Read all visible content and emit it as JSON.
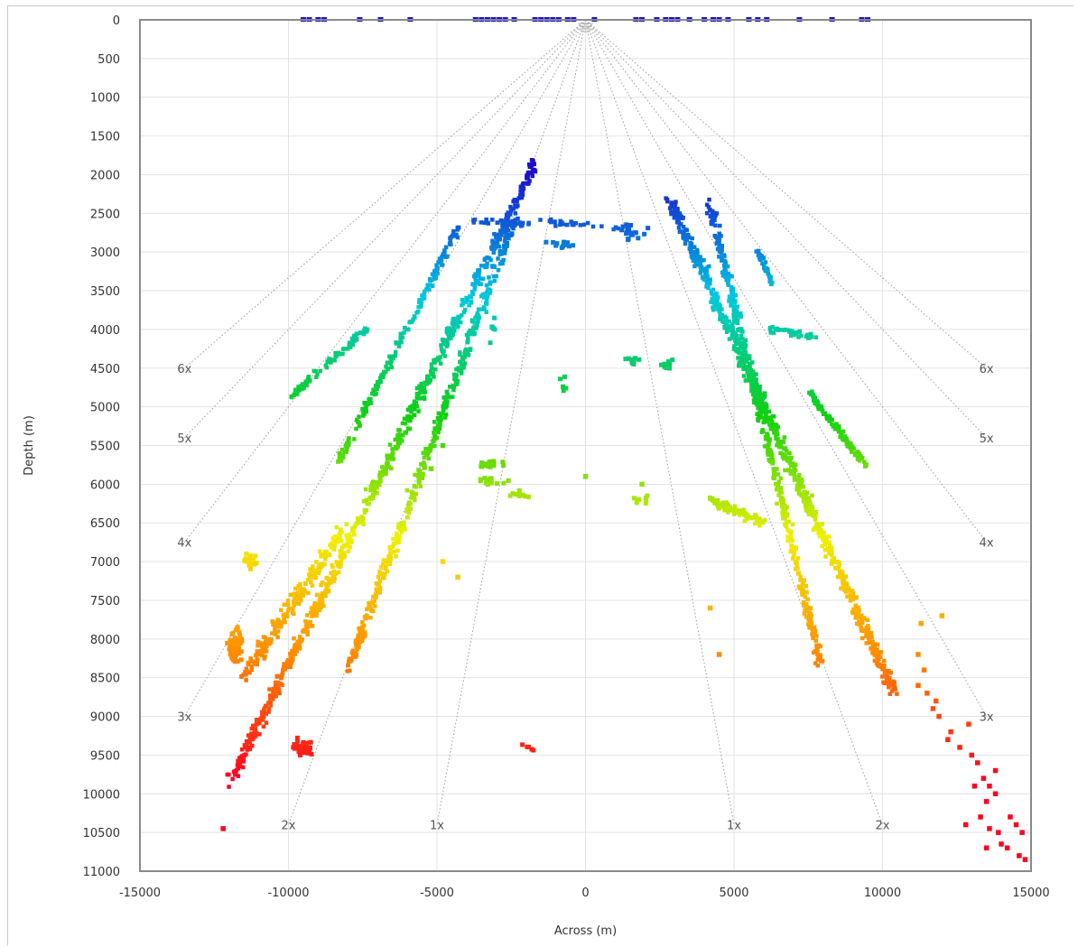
{
  "chart_data": {
    "type": "scatter",
    "title": "",
    "xlabel": "Across (m)",
    "ylabel": "Depth (m)",
    "xlim": [
      -15000,
      15000
    ],
    "ylim": [
      0,
      11000
    ],
    "y_inverted": true,
    "grid": true,
    "x_ticks": [
      -15000,
      -10000,
      -5000,
      0,
      5000,
      10000,
      15000
    ],
    "y_ticks": [
      0,
      500,
      1000,
      1500,
      2000,
      2500,
      3000,
      3500,
      4000,
      4500,
      5000,
      5500,
      6000,
      6500,
      7000,
      7500,
      8000,
      8500,
      9000,
      9500,
      10000,
      10500,
      11000
    ],
    "color_scale": [
      "#1a10d0",
      "#00c8e0",
      "#10d010",
      "#f0f000",
      "#ff8800",
      "#ff0020"
    ],
    "color_by": "depth",
    "coverage_lines": [
      {
        "label": "1x",
        "end": [
          -5000,
          10400
        ],
        "label_at": [
          -5000,
          10400
        ]
      },
      {
        "label": "1x",
        "end": [
          5000,
          10400
        ],
        "label_at": [
          5000,
          10400
        ]
      },
      {
        "label": "2x",
        "end": [
          -10000,
          10400
        ],
        "label_at": [
          -10000,
          10400
        ]
      },
      {
        "label": "2x",
        "end": [
          10000,
          10400
        ],
        "label_at": [
          10000,
          10400
        ]
      },
      {
        "label": "3x",
        "end": [
          -13500,
          9000
        ],
        "label_at": [
          -13500,
          9000
        ]
      },
      {
        "label": "3x",
        "end": [
          13500,
          9000
        ],
        "label_at": [
          13500,
          9000
        ]
      },
      {
        "label": "4x",
        "end": [
          -13500,
          6750
        ],
        "label_at": [
          -13500,
          6750
        ]
      },
      {
        "label": "4x",
        "end": [
          13500,
          6750
        ],
        "label_at": [
          13500,
          6750
        ]
      },
      {
        "label": "5x",
        "end": [
          -13500,
          5400
        ],
        "label_at": [
          -13500,
          5400
        ]
      },
      {
        "label": "5x",
        "end": [
          13500,
          5400
        ],
        "label_at": [
          13500,
          5400
        ]
      },
      {
        "label": "6x",
        "end": [
          -13500,
          4500
        ],
        "label_at": [
          -13500,
          4500
        ]
      },
      {
        "label": "6x",
        "end": [
          13500,
          4500
        ],
        "label_at": [
          13500,
          4500
        ]
      }
    ],
    "coverage_origin": [
      0,
      0
    ],
    "point_bands": [
      {
        "from": [
          -1700,
          1850
        ],
        "to": [
          -11900,
          9800
        ],
        "count": 700,
        "spread": 220
      },
      {
        "from": [
          -2400,
          2600
        ],
        "to": [
          -8000,
          8400
        ],
        "count": 420,
        "spread": 200
      },
      {
        "from": [
          -4300,
          2700
        ],
        "to": [
          -8300,
          5700
        ],
        "count": 180,
        "spread": 150
      },
      {
        "from": [
          -7400,
          4000
        ],
        "to": [
          -10000,
          4900
        ],
        "count": 90,
        "spread": 120
      },
      {
        "from": [
          -8200,
          6600
        ],
        "to": [
          -11500,
          8500
        ],
        "count": 200,
        "spread": 260
      },
      {
        "from": [
          2800,
          2300
        ],
        "to": [
          10400,
          8700
        ],
        "count": 700,
        "spread": 230
      },
      {
        "from": [
          4200,
          2400
        ],
        "to": [
          7900,
          8300
        ],
        "count": 450,
        "spread": 200
      },
      {
        "from": [
          5800,
          3000
        ],
        "to": [
          6300,
          3400
        ],
        "count": 40,
        "spread": 120
      },
      {
        "from": [
          6200,
          4000
        ],
        "to": [
          7800,
          4100
        ],
        "count": 40,
        "spread": 100
      },
      {
        "from": [
          7500,
          4800
        ],
        "to": [
          9500,
          5800
        ],
        "count": 100,
        "spread": 120
      },
      {
        "from": [
          4200,
          6200
        ],
        "to": [
          6000,
          6500
        ],
        "count": 80,
        "spread": 150
      },
      {
        "from": [
          -3800,
          2600
        ],
        "to": [
          -1800,
          2650
        ],
        "count": 30,
        "spread": 100
      },
      {
        "from": [
          -1500,
          2600
        ],
        "to": [
          1500,
          2700
        ],
        "count": 30,
        "spread": 90
      }
    ],
    "point_clusters": [
      {
        "x": -3300,
        "y": 5750,
        "count": 20,
        "sx": 900,
        "sy": 80
      },
      {
        "x": -3100,
        "y": 5950,
        "count": 14,
        "sx": 800,
        "sy": 80
      },
      {
        "x": -2200,
        "y": 6150,
        "count": 10,
        "sx": 600,
        "sy": 80
      },
      {
        "x": -800,
        "y": 2900,
        "count": 14,
        "sx": 700,
        "sy": 60
      },
      {
        "x": 1600,
        "y": 2750,
        "count": 20,
        "sx": 700,
        "sy": 150
      },
      {
        "x": 1600,
        "y": 4400,
        "count": 12,
        "sx": 400,
        "sy": 80
      },
      {
        "x": 2800,
        "y": 4450,
        "count": 14,
        "sx": 400,
        "sy": 80
      },
      {
        "x": 1800,
        "y": 6200,
        "count": 8,
        "sx": 500,
        "sy": 80
      },
      {
        "x": -700,
        "y": 4700,
        "count": 5,
        "sx": 300,
        "sy": 150
      },
      {
        "x": -3100,
        "y": 4000,
        "count": 6,
        "sx": 400,
        "sy": 200
      },
      {
        "x": -1800,
        "y": 9400,
        "count": 5,
        "sx": 600,
        "sy": 80
      },
      {
        "x": -9500,
        "y": 9400,
        "count": 40,
        "sx": 500,
        "sy": 150
      },
      {
        "x": -11300,
        "y": 7000,
        "count": 25,
        "sx": 400,
        "sy": 150
      },
      {
        "x": -11800,
        "y": 8100,
        "count": 55,
        "sx": 300,
        "sy": 300
      }
    ],
    "scatter_points": [
      {
        "x": -12200,
        "y": 10450
      },
      {
        "x": -4800,
        "y": 7000
      },
      {
        "x": -4300,
        "y": 7200
      },
      {
        "x": -5200,
        "y": 5800
      },
      {
        "x": -4800,
        "y": 5500
      },
      {
        "x": 0,
        "y": 5900
      },
      {
        "x": 1900,
        "y": 6000
      },
      {
        "x": 4500,
        "y": 8200
      },
      {
        "x": 4200,
        "y": 7600
      },
      {
        "x": 11200,
        "y": 8600
      },
      {
        "x": 11500,
        "y": 8700
      },
      {
        "x": 11700,
        "y": 8900
      },
      {
        "x": 12300,
        "y": 9200
      },
      {
        "x": 12600,
        "y": 9400
      },
      {
        "x": 11300,
        "y": 7800
      },
      {
        "x": 11200,
        "y": 8200
      },
      {
        "x": 11400,
        "y": 8400
      },
      {
        "x": 11800,
        "y": 8800
      },
      {
        "x": 11900,
        "y": 9000
      },
      {
        "x": 13000,
        "y": 9500
      },
      {
        "x": 13200,
        "y": 9600
      },
      {
        "x": 13400,
        "y": 9800
      },
      {
        "x": 13100,
        "y": 9900
      },
      {
        "x": 13600,
        "y": 9900
      },
      {
        "x": 13500,
        "y": 10100
      },
      {
        "x": 13800,
        "y": 10000
      },
      {
        "x": 13300,
        "y": 10300
      },
      {
        "x": 12800,
        "y": 10400
      },
      {
        "x": 13600,
        "y": 10450
      },
      {
        "x": 13900,
        "y": 10500
      },
      {
        "x": 14300,
        "y": 10300
      },
      {
        "x": 14500,
        "y": 10400
      },
      {
        "x": 14700,
        "y": 10500
      },
      {
        "x": 13500,
        "y": 10700
      },
      {
        "x": 14000,
        "y": 10650
      },
      {
        "x": 14200,
        "y": 10700
      },
      {
        "x": 14600,
        "y": 10800
      },
      {
        "x": 14800,
        "y": 10850
      },
      {
        "x": 12000,
        "y": 7700
      },
      {
        "x": 12200,
        "y": 9300
      },
      {
        "x": 12900,
        "y": 9100
      },
      {
        "x": 13800,
        "y": 9700
      }
    ],
    "surface_points": [
      {
        "x": -9500,
        "y": 0
      },
      {
        "x": -9300,
        "y": 0
      },
      {
        "x": -9000,
        "y": 0
      },
      {
        "x": -8800,
        "y": 0
      },
      {
        "x": -7600,
        "y": 0
      },
      {
        "x": -6900,
        "y": 0
      },
      {
        "x": -5900,
        "y": 0
      },
      {
        "x": -3700,
        "y": 0
      },
      {
        "x": -3500,
        "y": 0
      },
      {
        "x": -3300,
        "y": 0
      },
      {
        "x": -3100,
        "y": 0
      },
      {
        "x": -2900,
        "y": 0
      },
      {
        "x": -2700,
        "y": 0
      },
      {
        "x": -2400,
        "y": 0
      },
      {
        "x": -1700,
        "y": 0
      },
      {
        "x": -1500,
        "y": 0
      },
      {
        "x": -1300,
        "y": 0
      },
      {
        "x": -1100,
        "y": 0
      },
      {
        "x": -900,
        "y": 0
      },
      {
        "x": -600,
        "y": 0
      },
      {
        "x": -400,
        "y": 0
      },
      {
        "x": 300,
        "y": 0
      },
      {
        "x": 1700,
        "y": 0
      },
      {
        "x": 1900,
        "y": 0
      },
      {
        "x": 2400,
        "y": 0
      },
      {
        "x": 2700,
        "y": 0
      },
      {
        "x": 2900,
        "y": 0
      },
      {
        "x": 3100,
        "y": 0
      },
      {
        "x": 3500,
        "y": 0
      },
      {
        "x": 4000,
        "y": 0
      },
      {
        "x": 4300,
        "y": 0
      },
      {
        "x": 4500,
        "y": 0
      },
      {
        "x": 4800,
        "y": 0
      },
      {
        "x": 5500,
        "y": 0
      },
      {
        "x": 5800,
        "y": 0
      },
      {
        "x": 6100,
        "y": 0
      },
      {
        "x": 7200,
        "y": 0
      },
      {
        "x": 8300,
        "y": 0
      },
      {
        "x": 9300,
        "y": 0
      },
      {
        "x": 9500,
        "y": 0
      }
    ]
  }
}
